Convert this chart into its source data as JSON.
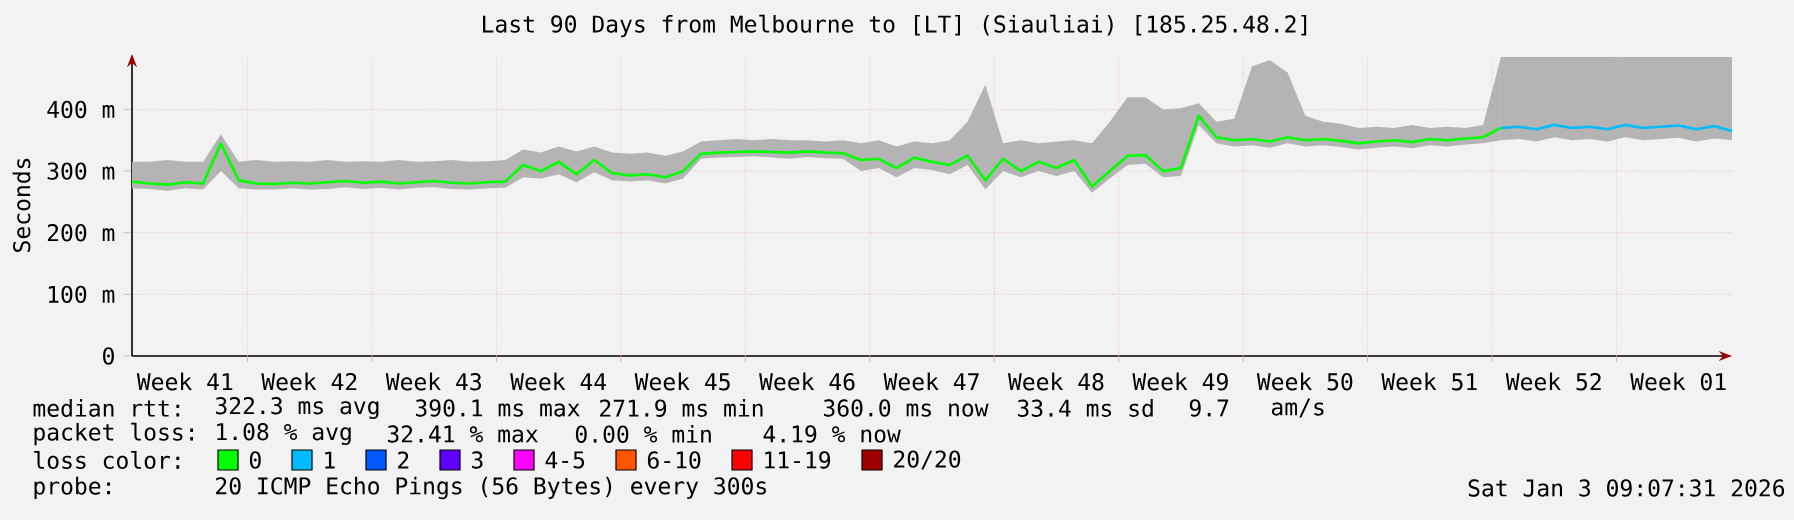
{
  "chart_data": {
    "type": "line",
    "title": "Last 90 Days from Melbourne to [LT] (Siauliai) [185.25.48.2]",
    "ylabel": "Seconds",
    "legend_title": "loss color:",
    "legend": "bottom",
    "grid": true,
    "categories": [
      null,
      null,
      null,
      "Week 41",
      null,
      null,
      null,
      null,
      null,
      null,
      "Week 42",
      null,
      null,
      null,
      null,
      null,
      null,
      "Week 43",
      null,
      null,
      null,
      null,
      null,
      null,
      "Week 44",
      null,
      null,
      null,
      null,
      null,
      null,
      "Week 45",
      null,
      null,
      null,
      null,
      null,
      null,
      "Week 46",
      null,
      null,
      null,
      null,
      null,
      null,
      "Week 47",
      null,
      null,
      null,
      null,
      null,
      null,
      "Week 48",
      null,
      null,
      null,
      null,
      null,
      null,
      "Week 49",
      null,
      null,
      null,
      null,
      null,
      null,
      "Week 50",
      null,
      null,
      null,
      null,
      null,
      null,
      "Week 51",
      null,
      null,
      null,
      null,
      null,
      null,
      "Week 52",
      null,
      null,
      null,
      null,
      null,
      null,
      "Week 01",
      null,
      null,
      null
    ],
    "ylim": [
      0,
      490
    ],
    "yticks": [
      0,
      {
        "value": 100,
        "label": "100 m"
      },
      {
        "value": 200,
        "label": "200 m"
      },
      {
        "value": 300,
        "label": "300 m"
      },
      {
        "value": 400,
        "label": "400 m"
      }
    ],
    "series": [
      {
        "name": "0",
        "color": "#00ff00",
        "values": [
          283,
          280,
          278,
          282,
          280,
          345,
          285,
          280,
          279,
          281,
          280,
          282,
          284,
          281,
          283,
          280,
          282,
          284,
          281,
          280,
          282,
          283,
          310,
          300,
          315,
          295,
          318,
          297,
          293,
          295,
          290,
          300,
          328,
          330,
          331,
          332,
          331,
          330,
          332,
          330,
          329,
          318,
          320,
          305,
          322,
          315,
          310,
          325,
          285,
          320,
          300,
          315,
          305,
          318,
          275,
          300,
          325,
          326,
          300,
          305,
          390,
          355,
          350,
          352,
          348,
          355,
          350,
          352,
          349,
          345,
          348,
          350,
          347,
          352,
          350,
          353,
          355,
          370,
          null,
          null,
          null,
          null,
          null,
          null,
          null,
          null,
          null,
          null,
          null,
          null,
          null
        ],
        "lower": [
          272,
          271,
          268,
          272,
          270,
          300,
          272,
          270,
          270,
          272,
          270,
          271,
          274,
          271,
          273,
          270,
          273,
          274,
          271,
          270,
          272,
          273,
          290,
          288,
          295,
          282,
          298,
          285,
          283,
          285,
          280,
          288,
          320,
          322,
          323,
          324,
          322,
          320,
          323,
          321,
          320,
          300,
          305,
          290,
          305,
          302,
          295,
          310,
          270,
          300,
          290,
          300,
          292,
          300,
          265,
          288,
          310,
          312,
          290,
          292,
          375,
          345,
          340,
          342,
          338,
          345,
          340,
          342,
          339,
          335,
          338,
          340,
          337,
          342,
          340,
          343,
          345,
          350,
          null,
          null,
          null,
          null,
          null,
          null,
          null,
          null,
          null,
          null,
          null,
          null,
          null
        ],
        "upper": [
          315,
          315,
          318,
          315,
          315,
          360,
          315,
          318,
          315,
          316,
          315,
          318,
          315,
          316,
          315,
          318,
          315,
          316,
          318,
          315,
          316,
          318,
          335,
          330,
          340,
          332,
          340,
          330,
          328,
          330,
          325,
          332,
          348,
          350,
          352,
          350,
          352,
          350,
          350,
          348,
          350,
          345,
          350,
          340,
          348,
          345,
          350,
          380,
          440,
          345,
          350,
          345,
          348,
          350,
          345,
          380,
          420,
          420,
          400,
          402,
          410,
          380,
          385,
          470,
          480,
          460,
          390,
          380,
          377,
          370,
          372,
          370,
          375,
          370,
          372,
          370,
          375,
          485,
          null,
          null,
          null,
          null,
          null,
          null,
          null,
          null,
          null,
          null,
          null,
          null,
          null
        ]
      },
      {
        "name": "1",
        "color": "#00bbff",
        "values": [
          null,
          null,
          null,
          null,
          null,
          null,
          null,
          null,
          null,
          null,
          null,
          null,
          null,
          null,
          null,
          null,
          null,
          null,
          null,
          null,
          null,
          null,
          null,
          null,
          null,
          null,
          null,
          null,
          null,
          null,
          null,
          null,
          null,
          null,
          null,
          null,
          null,
          null,
          null,
          null,
          null,
          null,
          null,
          null,
          null,
          null,
          null,
          null,
          null,
          null,
          null,
          null,
          null,
          null,
          null,
          null,
          null,
          null,
          null,
          null,
          null,
          null,
          null,
          null,
          null,
          null,
          null,
          null,
          null,
          null,
          null,
          null,
          null,
          null,
          null,
          null,
          null,
          370,
          372,
          368,
          375,
          370,
          372,
          368,
          375,
          370,
          372,
          374,
          368,
          373,
          365
        ],
        "lower": [
          null,
          null,
          null,
          null,
          null,
          null,
          null,
          null,
          null,
          null,
          null,
          null,
          null,
          null,
          null,
          null,
          null,
          null,
          null,
          null,
          null,
          null,
          null,
          null,
          null,
          null,
          null,
          null,
          null,
          null,
          null,
          null,
          null,
          null,
          null,
          null,
          null,
          null,
          null,
          null,
          null,
          null,
          null,
          null,
          null,
          null,
          null,
          null,
          null,
          null,
          null,
          null,
          null,
          null,
          null,
          null,
          null,
          null,
          null,
          null,
          null,
          null,
          null,
          null,
          null,
          null,
          null,
          null,
          null,
          null,
          null,
          null,
          null,
          null,
          null,
          null,
          null,
          350,
          352,
          348,
          355,
          350,
          352,
          348,
          355,
          350,
          352,
          354,
          348,
          353,
          350
        ],
        "upper": [
          null,
          null,
          null,
          null,
          null,
          null,
          null,
          null,
          null,
          null,
          null,
          null,
          null,
          null,
          null,
          null,
          null,
          null,
          null,
          null,
          null,
          null,
          null,
          null,
          null,
          null,
          null,
          null,
          null,
          null,
          null,
          null,
          null,
          null,
          null,
          null,
          null,
          null,
          null,
          null,
          null,
          null,
          null,
          null,
          null,
          null,
          null,
          null,
          null,
          null,
          null,
          null,
          null,
          null,
          null,
          null,
          null,
          null,
          null,
          null,
          null,
          null,
          null,
          null,
          null,
          null,
          null,
          null,
          null,
          null,
          null,
          null,
          null,
          null,
          null,
          null,
          null,
          485,
          485,
          485,
          485,
          485,
          485,
          485,
          485,
          485,
          485,
          485,
          485,
          485,
          485
        ]
      },
      {
        "name": "2",
        "color": "#0059ff",
        "values": [
          null,
          null,
          null,
          null,
          null,
          null,
          null,
          null,
          null,
          null,
          null,
          null,
          null,
          null,
          null,
          null,
          null,
          null,
          null,
          null,
          null,
          null,
          null,
          null,
          null,
          null,
          null,
          null,
          null,
          null,
          null,
          null,
          null,
          null,
          null,
          null,
          null,
          null,
          null,
          null,
          null,
          null,
          null,
          null,
          null,
          null,
          null,
          null,
          null,
          null,
          null,
          null,
          null,
          null,
          null,
          null,
          null,
          null,
          null,
          null,
          null,
          null,
          null,
          null,
          null,
          null,
          null,
          null,
          null,
          null,
          null,
          null,
          null,
          null,
          null,
          null,
          null,
          null,
          null,
          null,
          null,
          null,
          null,
          null,
          null,
          null,
          null,
          null,
          null,
          null,
          null
        ]
      },
      {
        "name": "3",
        "color": "#5e00ff",
        "values": [
          null,
          null,
          null,
          null,
          null,
          null,
          null,
          null,
          null,
          null,
          null,
          null,
          null,
          null,
          null,
          null,
          null,
          null,
          null,
          null,
          null,
          null,
          null,
          null,
          null,
          null,
          null,
          null,
          null,
          null,
          null,
          null,
          null,
          null,
          null,
          null,
          null,
          null,
          null,
          null,
          null,
          null,
          null,
          null,
          null,
          null,
          null,
          null,
          null,
          null,
          null,
          null,
          null,
          null,
          null,
          null,
          null,
          null,
          null,
          null,
          null,
          null,
          null,
          null,
          null,
          null,
          null,
          null,
          null,
          null,
          null,
          null,
          null,
          null,
          null,
          null,
          null,
          null,
          null,
          null,
          null,
          null,
          null,
          null,
          null,
          null,
          null,
          null,
          null,
          null,
          null
        ]
      },
      {
        "name": "4-5",
        "color": "#ff00ff",
        "values": [
          null,
          null,
          null,
          null,
          null,
          null,
          null,
          null,
          null,
          null,
          null,
          null,
          null,
          null,
          null,
          null,
          null,
          null,
          null,
          null,
          null,
          null,
          null,
          null,
          null,
          null,
          null,
          null,
          null,
          null,
          null,
          null,
          null,
          null,
          null,
          null,
          null,
          null,
          null,
          null,
          null,
          null,
          null,
          null,
          null,
          null,
          null,
          null,
          null,
          null,
          null,
          null,
          null,
          null,
          null,
          null,
          null,
          null,
          null,
          null,
          null,
          null,
          null,
          null,
          null,
          null,
          null,
          null,
          null,
          null,
          null,
          null,
          null,
          null,
          null,
          null,
          null,
          null,
          null,
          null,
          null,
          null,
          null,
          null,
          null,
          null,
          null,
          null,
          null,
          null,
          null
        ]
      },
      {
        "name": "6-10",
        "color": "#ff5500",
        "values": [
          null,
          null,
          null,
          null,
          null,
          null,
          null,
          null,
          null,
          null,
          null,
          null,
          null,
          null,
          null,
          null,
          null,
          null,
          null,
          null,
          null,
          null,
          null,
          null,
          null,
          null,
          null,
          null,
          null,
          null,
          null,
          null,
          null,
          null,
          null,
          null,
          null,
          null,
          null,
          null,
          null,
          null,
          null,
          null,
          null,
          null,
          null,
          null,
          null,
          null,
          null,
          null,
          null,
          null,
          null,
          null,
          null,
          null,
          null,
          null,
          null,
          null,
          null,
          null,
          null,
          null,
          null,
          null,
          null,
          null,
          null,
          null,
          null,
          null,
          null,
          null,
          null,
          null,
          null,
          null,
          null,
          null,
          null,
          null,
          null,
          null,
          null,
          null,
          null,
          null,
          null
        ]
      },
      {
        "name": "11-19",
        "color": "#ff0000",
        "values": [
          null,
          null,
          null,
          null,
          null,
          null,
          null,
          null,
          null,
          null,
          null,
          null,
          null,
          null,
          null,
          null,
          null,
          null,
          null,
          null,
          null,
          null,
          null,
          null,
          null,
          null,
          null,
          null,
          null,
          null,
          null,
          null,
          null,
          null,
          null,
          null,
          null,
          null,
          null,
          null,
          null,
          null,
          null,
          null,
          null,
          null,
          null,
          null,
          null,
          null,
          null,
          null,
          null,
          null,
          null,
          null,
          null,
          null,
          null,
          null,
          null,
          null,
          null,
          null,
          null,
          null,
          null,
          null,
          null,
          null,
          null,
          null,
          null,
          null,
          null,
          null,
          null,
          null,
          null,
          null,
          null,
          null,
          null,
          null,
          null,
          null,
          null,
          null,
          null,
          null,
          null
        ]
      },
      {
        "name": "20/20",
        "color": "#a10000",
        "values": [
          null,
          null,
          null,
          null,
          null,
          null,
          null,
          null,
          null,
          null,
          null,
          null,
          null,
          null,
          null,
          null,
          null,
          null,
          null,
          null,
          null,
          null,
          null,
          null,
          null,
          null,
          null,
          null,
          null,
          null,
          null,
          null,
          null,
          null,
          null,
          null,
          null,
          null,
          null,
          null,
          null,
          null,
          null,
          null,
          null,
          null,
          null,
          null,
          null,
          null,
          null,
          null,
          null,
          null,
          null,
          null,
          null,
          null,
          null,
          null,
          null,
          null,
          null,
          null,
          null,
          null,
          null,
          null,
          null,
          null,
          null,
          null,
          null,
          null,
          null,
          null,
          null,
          null,
          null,
          null,
          null,
          null,
          null,
          null,
          null,
          null,
          null,
          null,
          null,
          null,
          null
        ]
      }
    ],
    "annotations": [
      "median rtt:",
      "322.3 ms avg",
      "390.1 ms max",
      "271.9 ms min",
      "360.0 ms now",
      "33.4 ms sd",
      "9.7",
      "am/s",
      "packet loss:",
      "1.08 % avg",
      "32.41 % max",
      "0.00 % min",
      "4.19 % now",
      "probe:",
      "20 ICMP Echo Pings (56 Bytes) every 300s",
      "Sat Jan  3 09:07:31 2026"
    ]
  }
}
